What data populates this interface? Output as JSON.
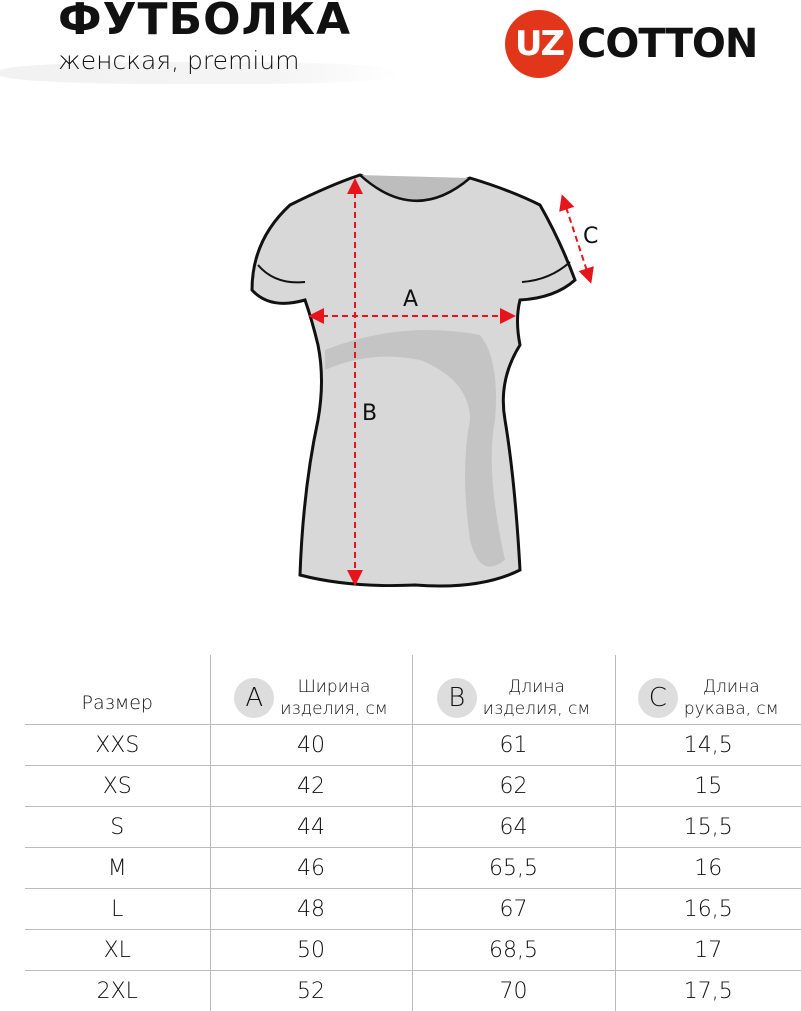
{
  "header": {
    "title": "ФУТБОЛКА",
    "subtitle": "женская, premium"
  },
  "logo": {
    "mark": "UZ",
    "word": "COTTON",
    "color": "#e2361b"
  },
  "diagram": {
    "labels": {
      "a": "A",
      "b": "B",
      "c": "C"
    },
    "arrow_color": "#e8141b"
  },
  "table": {
    "columns": [
      {
        "label": "Размер"
      },
      {
        "badge": "A",
        "label1": "Ширина",
        "label2": "изделия, см"
      },
      {
        "badge": "B",
        "label1": "Длина",
        "label2": "изделия, см"
      },
      {
        "badge": "C",
        "label1": "Длина",
        "label2": "рукава, см"
      }
    ],
    "rows": [
      [
        "XXS",
        "40",
        "61",
        "14,5"
      ],
      [
        "XS",
        "42",
        "62",
        "15"
      ],
      [
        "S",
        "44",
        "64",
        "15,5"
      ],
      [
        "M",
        "46",
        "65,5",
        "16"
      ],
      [
        "L",
        "48",
        "67",
        "16,5"
      ],
      [
        "XL",
        "50",
        "68,5",
        "17"
      ],
      [
        "2XL",
        "52",
        "70",
        "17,5"
      ]
    ]
  }
}
